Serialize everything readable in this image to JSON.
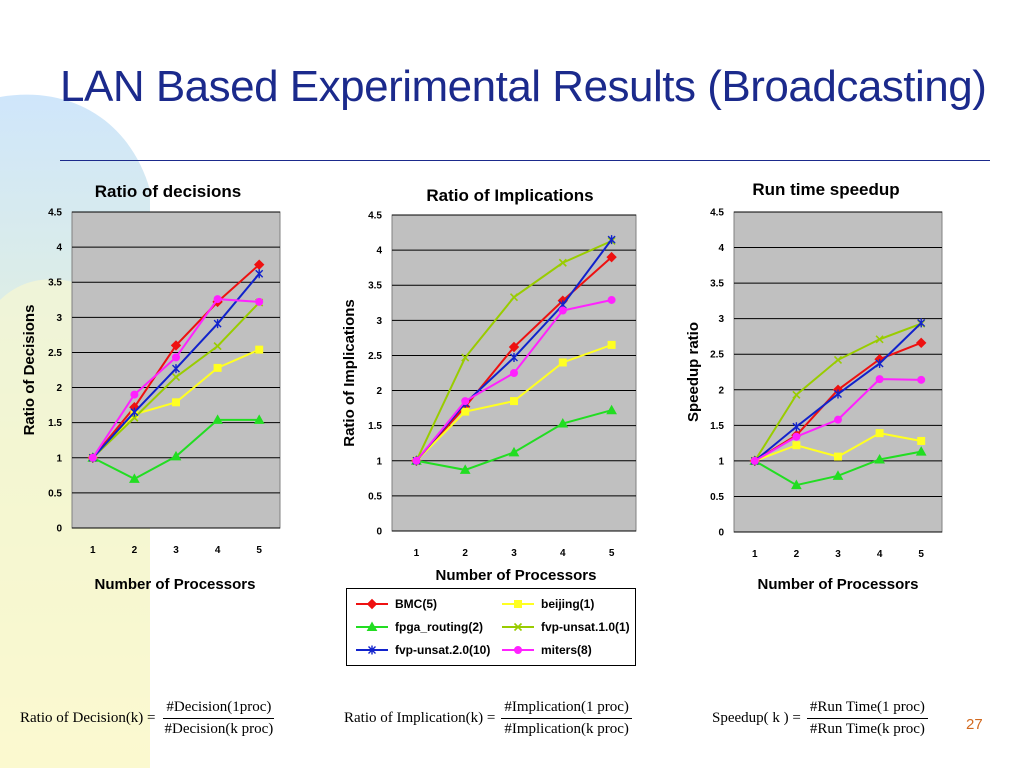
{
  "slide": {
    "title": "LAN Based Experimental Results (Broadcasting)",
    "page_number": "27"
  },
  "colors": {
    "title": "#1b2a8c",
    "plot_bg": "#c0c0c0",
    "BMC(5)": "#ee1111",
    "beijing(1)": "#ffff22",
    "fpga_routing(2)": "#22dd22",
    "fvp-unsat.1.0(1)": "#99cc00",
    "fvp-unsat.2.0(10)": "#1122cc",
    "miters(8)": "#ff22ff"
  },
  "legend": {
    "items": [
      {
        "label": "BMC(5)",
        "color": "#ee1111",
        "marker": "diamond"
      },
      {
        "label": "beijing(1)",
        "color": "#ffff22",
        "marker": "square"
      },
      {
        "label": "fpga_routing(2)",
        "color": "#22dd22",
        "marker": "triangle"
      },
      {
        "label": "fvp-unsat.1.0(1)",
        "color": "#99cc00",
        "marker": "x"
      },
      {
        "label": "fvp-unsat.2.0(10)",
        "color": "#1122cc",
        "marker": "star"
      },
      {
        "label": "miters(8)",
        "color": "#ff22ff",
        "marker": "circle"
      }
    ]
  },
  "formulas": {
    "decision": {
      "lhs": "Ratio of  Decision(k) =",
      "num": "#Decision(1proc)",
      "den": "#Decision(k proc)"
    },
    "implication": {
      "lhs": "Ratio of  Implication(k) =",
      "num": "#Implication(1 proc)",
      "den": "#Implication(k proc)"
    },
    "speedup": {
      "lhs": "Speedup( k ) =",
      "num": "#Run Time(1 proc)",
      "den": "#Run Time(k  proc)"
    }
  },
  "chart_data": [
    {
      "type": "line",
      "title": "Ratio of decisions",
      "xlabel": "Number of Processors",
      "ylabel": "Ratio of Decisions",
      "x": [
        1,
        2,
        3,
        4,
        5
      ],
      "ylim": [
        0,
        4.5
      ],
      "yticks": [
        "0",
        "0.5",
        "1",
        "1.5",
        "2",
        "2.5",
        "3",
        "3.5",
        "4",
        "4.5"
      ],
      "grid": true,
      "series": [
        {
          "name": "BMC(5)",
          "values": [
            1.0,
            1.72,
            2.6,
            3.22,
            3.75
          ]
        },
        {
          "name": "beijing(1)",
          "values": [
            1.0,
            1.62,
            1.79,
            2.28,
            2.54
          ]
        },
        {
          "name": "fpga_routing(2)",
          "values": [
            1.0,
            0.7,
            1.02,
            1.54,
            1.54
          ]
        },
        {
          "name": "fvp-unsat.1.0(1)",
          "values": [
            1.0,
            1.57,
            2.15,
            2.59,
            3.21
          ]
        },
        {
          "name": "fvp-unsat.2.0(10)",
          "values": [
            1.0,
            1.65,
            2.27,
            2.91,
            3.62
          ]
        },
        {
          "name": "miters(8)",
          "values": [
            1.0,
            1.9,
            2.43,
            3.26,
            3.22
          ]
        }
      ]
    },
    {
      "type": "line",
      "title": "Ratio of Implications",
      "xlabel": "Number of Processors",
      "ylabel": "Ratio of Implications",
      "x": [
        1,
        2,
        3,
        4,
        5
      ],
      "ylim": [
        0,
        4.5
      ],
      "yticks": [
        "0",
        "0.5",
        "1",
        "1.5",
        "2",
        "2.5",
        "3",
        "3.5",
        "4",
        "4.5"
      ],
      "grid": true,
      "series": [
        {
          "name": "BMC(5)",
          "values": [
            1.0,
            1.77,
            2.62,
            3.28,
            3.9
          ]
        },
        {
          "name": "beijing(1)",
          "values": [
            1.0,
            1.7,
            1.85,
            2.4,
            2.65
          ]
        },
        {
          "name": "fpga_routing(2)",
          "values": [
            1.0,
            0.87,
            1.12,
            1.53,
            1.72
          ]
        },
        {
          "name": "fvp-unsat.1.0(1)",
          "values": [
            1.0,
            2.47,
            3.33,
            3.82,
            4.13
          ]
        },
        {
          "name": "fvp-unsat.2.0(10)",
          "values": [
            1.0,
            1.82,
            2.47,
            3.22,
            4.15
          ]
        },
        {
          "name": "miters(8)",
          "values": [
            1.0,
            1.85,
            2.25,
            3.14,
            3.29
          ]
        }
      ]
    },
    {
      "type": "line",
      "title": "Run time speedup",
      "xlabel": "Number of Processors",
      "ylabel": "Speedup ratio",
      "x": [
        1,
        2,
        3,
        4,
        5
      ],
      "ylim": [
        0,
        4.5
      ],
      "yticks": [
        "0",
        "0.5",
        "1",
        "1.5",
        "2",
        "2.5",
        "3",
        "3.5",
        "4",
        "4.5"
      ],
      "grid": true,
      "series": [
        {
          "name": "BMC(5)",
          "values": [
            1.0,
            1.36,
            2.0,
            2.43,
            2.66
          ]
        },
        {
          "name": "beijing(1)",
          "values": [
            1.0,
            1.22,
            1.06,
            1.39,
            1.28
          ]
        },
        {
          "name": "fpga_routing(2)",
          "values": [
            1.0,
            0.66,
            0.79,
            1.02,
            1.13
          ]
        },
        {
          "name": "fvp-unsat.1.0(1)",
          "values": [
            1.0,
            1.93,
            2.42,
            2.71,
            2.93
          ]
        },
        {
          "name": "fvp-unsat.2.0(10)",
          "values": [
            1.0,
            1.48,
            1.94,
            2.37,
            2.94
          ]
        },
        {
          "name": "miters(8)",
          "values": [
            1.0,
            1.34,
            1.58,
            2.15,
            2.14
          ]
        }
      ]
    }
  ]
}
